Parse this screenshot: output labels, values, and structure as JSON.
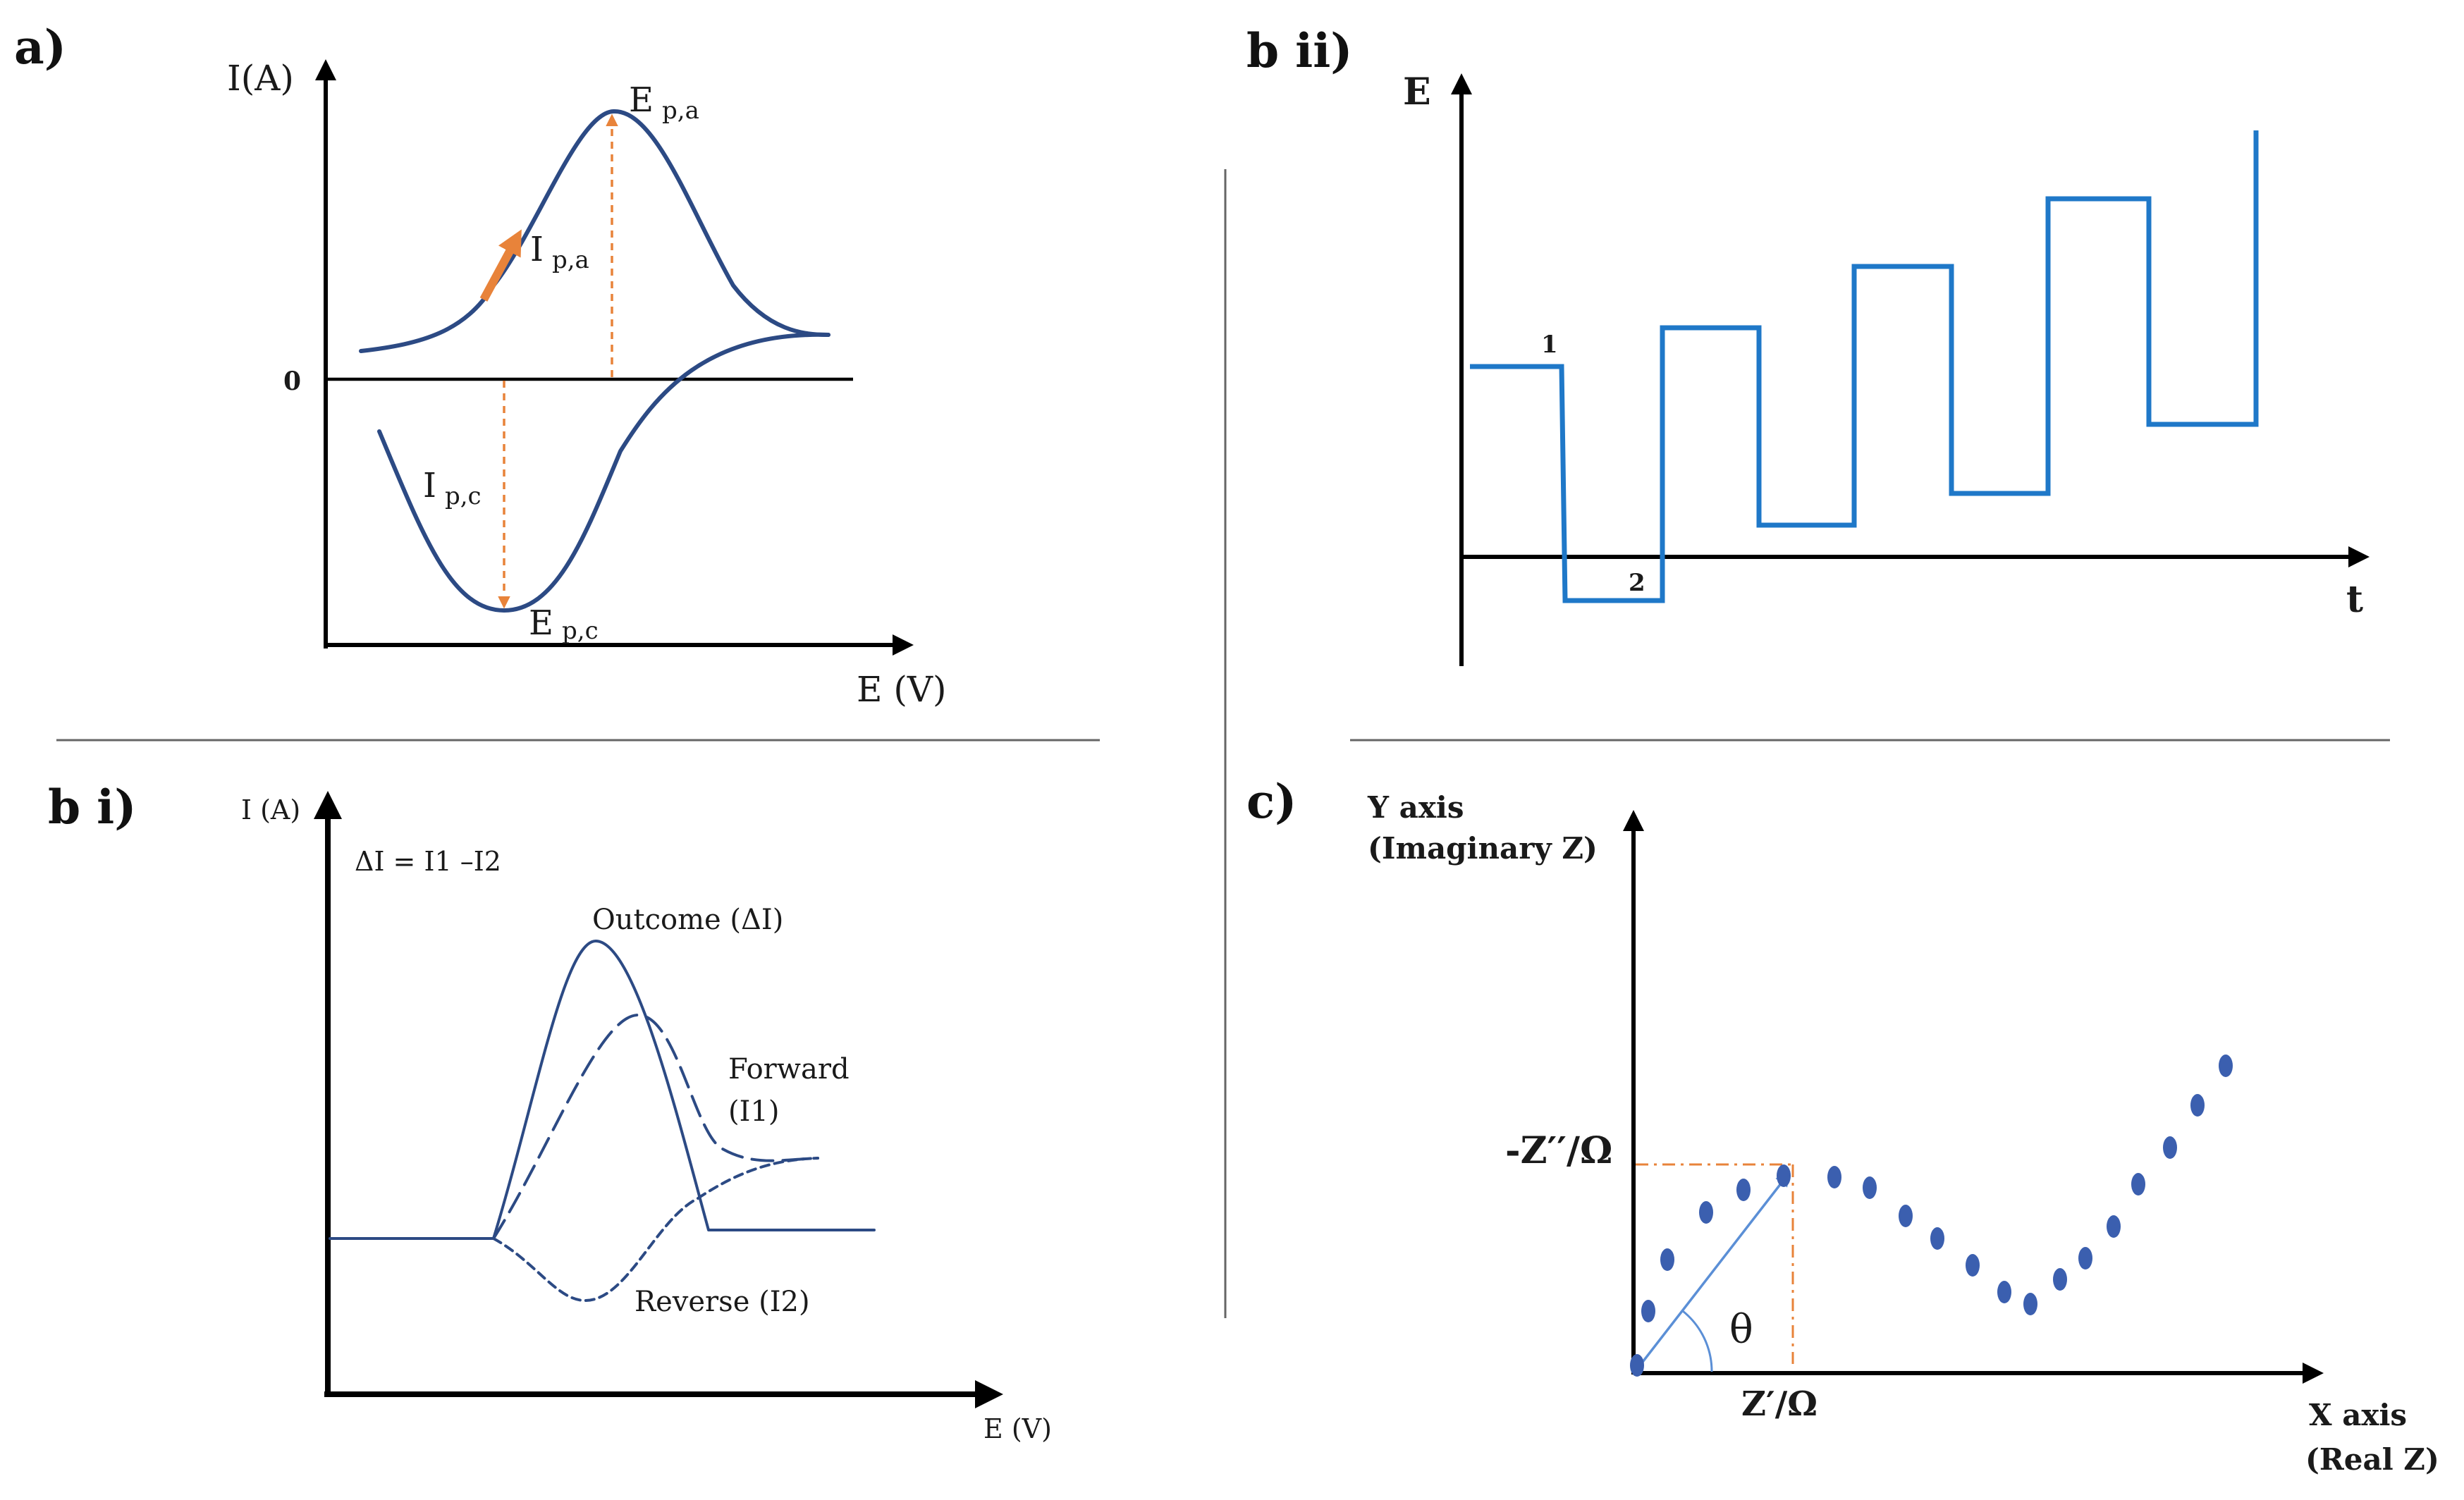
{
  "panels": {
    "a": {
      "label": "a)",
      "y_axis_label": "I(A)",
      "x_axis_label": "E (V)",
      "zero_label": "0",
      "anodic_peak_potential": {
        "main": "E",
        "sub": "p,a"
      },
      "anodic_peak_current": {
        "main": "I",
        "sub": "p,a"
      },
      "cathodic_peak_current": {
        "main": "I",
        "sub": "p,c"
      },
      "cathodic_peak_potential": {
        "main": "E",
        "sub": "p,c"
      }
    },
    "b_i": {
      "label": "b i)",
      "y_axis_label": "I (A)",
      "x_axis_label": "E (V)",
      "equation": "ΔI = I1 –I2",
      "outcome_label": "Outcome (ΔI)",
      "forward_label_line1": "Forward",
      "forward_label_line2": "(I1)",
      "reverse_label": "Reverse (I2)"
    },
    "b_ii": {
      "label": "b ii)",
      "y_axis_label": "E",
      "x_axis_label": "t",
      "point1_label": "1",
      "point2_label": "2"
    },
    "c": {
      "label": "c)",
      "y_axis_line1": "Y axis",
      "y_axis_line2": "(Imaginary Z)",
      "x_axis_line1": "X axis",
      "x_axis_line2": "(Real Z)",
      "imag_label": "-Z′′/Ω",
      "real_label": "Z′/Ω",
      "angle_label": "θ"
    }
  },
  "colors": {
    "cv_curve": "#2c4a84",
    "annotation_orange": "#e8833a",
    "square_wave": "#1f78c8",
    "nyquist_points": "#3b5faf"
  }
}
